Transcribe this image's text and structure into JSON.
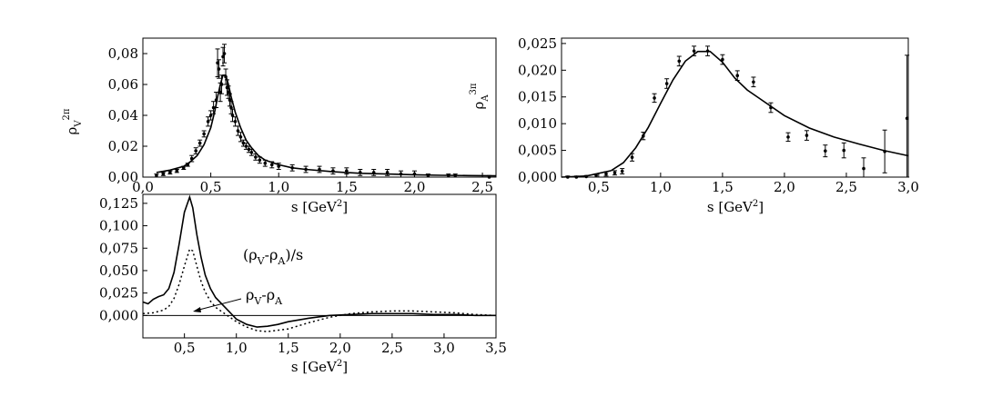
{
  "chart_data": [
    {
      "id": "p1",
      "type": "scatter",
      "xlabel": "s [GeV",
      "xlabel_sup": "2",
      "xlabel_tail": "]",
      "ylabel": "ρ",
      "ylabel_sub": "V",
      "ylabel_sup": "2π",
      "xlim": [
        0.0,
        2.6
      ],
      "ylim": [
        0.0,
        0.09
      ],
      "xticks": [
        0.0,
        0.5,
        1.0,
        1.5,
        2.0,
        2.5
      ],
      "xtick_labels": [
        "0,0",
        "0,5",
        "1,0",
        "1,5",
        "2,0",
        "2,5"
      ],
      "yticks": [
        0.0,
        0.02,
        0.04,
        0.06,
        0.08
      ],
      "ytick_labels": [
        "0,00",
        "0,02",
        "0,04",
        "0,06",
        "0,08"
      ],
      "grid": false,
      "series": [
        {
          "kind": "points",
          "x": [
            0.1,
            0.15,
            0.2,
            0.25,
            0.3,
            0.33,
            0.36,
            0.39,
            0.42,
            0.45,
            0.48,
            0.5,
            0.52,
            0.54,
            0.55,
            0.56,
            0.57,
            0.58,
            0.59,
            0.6,
            0.61,
            0.62,
            0.63,
            0.64,
            0.65,
            0.66,
            0.68,
            0.7,
            0.72,
            0.74,
            0.76,
            0.78,
            0.8,
            0.83,
            0.86,
            0.9,
            0.95,
            1.0,
            1.1,
            1.2,
            1.3,
            1.4,
            1.5,
            1.6,
            1.7,
            1.8,
            1.9,
            2.0,
            2.1,
            2.25,
            2.3,
            2.55
          ],
          "y": [
            0.001,
            0.002,
            0.003,
            0.004,
            0.006,
            0.008,
            0.012,
            0.017,
            0.022,
            0.028,
            0.036,
            0.04,
            0.045,
            0.05,
            0.074,
            0.07,
            0.055,
            0.06,
            0.078,
            0.08,
            0.065,
            0.058,
            0.055,
            0.05,
            0.045,
            0.04,
            0.036,
            0.03,
            0.026,
            0.022,
            0.02,
            0.018,
            0.016,
            0.013,
            0.011,
            0.009,
            0.008,
            0.007,
            0.006,
            0.005,
            0.005,
            0.004,
            0.004,
            0.003,
            0.003,
            0.003,
            0.002,
            0.002,
            0.001,
            0.001,
            0.001,
            0.0
          ],
          "err": [
            0.001,
            0.001,
            0.001,
            0.001,
            0.001,
            0.001,
            0.002,
            0.002,
            0.002,
            0.002,
            0.003,
            0.003,
            0.004,
            0.005,
            0.009,
            0.006,
            0.006,
            0.006,
            0.006,
            0.006,
            0.005,
            0.005,
            0.004,
            0.004,
            0.004,
            0.004,
            0.003,
            0.003,
            0.003,
            0.002,
            0.002,
            0.002,
            0.002,
            0.002,
            0.002,
            0.002,
            0.002,
            0.002,
            0.002,
            0.002,
            0.002,
            0.002,
            0.002,
            0.002,
            0.002,
            0.002,
            0.002,
            0.002,
            0.001,
            0.001,
            0.001,
            0.001
          ]
        },
        {
          "kind": "line",
          "x": [
            0.1,
            0.2,
            0.3,
            0.35,
            0.4,
            0.45,
            0.5,
            0.53,
            0.55,
            0.57,
            0.59,
            0.61,
            0.63,
            0.65,
            0.68,
            0.72,
            0.76,
            0.8,
            0.85,
            0.9,
            1.0,
            1.1,
            1.2,
            1.4,
            1.6,
            1.8,
            2.0,
            2.2,
            2.4,
            2.6
          ],
          "y": [
            0.003,
            0.0045,
            0.007,
            0.01,
            0.014,
            0.021,
            0.032,
            0.043,
            0.052,
            0.06,
            0.066,
            0.066,
            0.06,
            0.052,
            0.042,
            0.032,
            0.024,
            0.019,
            0.014,
            0.011,
            0.008,
            0.006,
            0.005,
            0.0035,
            0.0025,
            0.002,
            0.0015,
            0.0012,
            0.001,
            0.0008
          ]
        }
      ]
    },
    {
      "id": "p2",
      "type": "scatter",
      "xlabel": "s [GeV",
      "xlabel_sup": "2",
      "xlabel_tail": "]",
      "ylabel": "ρ",
      "ylabel_sub": "A",
      "ylabel_sup": "3π",
      "xlim": [
        0.2,
        3.0
      ],
      "ylim": [
        0.0,
        0.026
      ],
      "xticks": [
        0.5,
        1.0,
        1.5,
        2.0,
        2.5,
        3.0
      ],
      "xtick_labels": [
        "0,5",
        "1,0",
        "1,5",
        "2,0",
        "2,5",
        "3,0"
      ],
      "yticks": [
        0.0,
        0.005,
        0.01,
        0.015,
        0.02,
        0.025
      ],
      "ytick_labels": [
        "0,000",
        "0,005",
        "0,010",
        "0,015",
        "0,020",
        "0,025"
      ],
      "grid": false,
      "series": [
        {
          "kind": "points",
          "x": [
            0.25,
            0.32,
            0.4,
            0.48,
            0.56,
            0.63,
            0.69,
            0.77,
            0.86,
            0.95,
            1.05,
            1.15,
            1.27,
            1.38,
            1.5,
            1.62,
            1.75,
            1.89,
            2.03,
            2.18,
            2.33,
            2.48,
            2.64,
            2.81,
            2.99
          ],
          "y": [
            0.0,
            0.0,
            0.0001,
            0.0003,
            0.0006,
            0.0008,
            0.0011,
            0.0037,
            0.0077,
            0.0148,
            0.0175,
            0.0217,
            0.0236,
            0.0236,
            0.022,
            0.019,
            0.0178,
            0.013,
            0.0075,
            0.0078,
            0.0049,
            0.005,
            0.0016,
            0.0048,
            0.011
          ],
          "err": [
            0.0002,
            0.0002,
            0.0002,
            0.0003,
            0.0004,
            0.0004,
            0.0005,
            0.0007,
            0.0007,
            0.0008,
            0.0009,
            0.0009,
            0.0009,
            0.0009,
            0.0009,
            0.0009,
            0.0009,
            0.0009,
            0.0008,
            0.0009,
            0.0011,
            0.0014,
            0.002,
            0.004,
            0.0118
          ]
        },
        {
          "kind": "line",
          "x": [
            0.2,
            0.4,
            0.6,
            0.7,
            0.8,
            0.9,
            1.0,
            1.1,
            1.2,
            1.3,
            1.4,
            1.5,
            1.6,
            1.7,
            1.8,
            2.0,
            2.2,
            2.4,
            2.6,
            2.8,
            3.0
          ],
          "y": [
            0.0,
            0.0002,
            0.0012,
            0.0027,
            0.0055,
            0.0093,
            0.0138,
            0.0182,
            0.0217,
            0.0235,
            0.0235,
            0.0215,
            0.0185,
            0.0163,
            0.0147,
            0.0115,
            0.0092,
            0.0075,
            0.0062,
            0.005,
            0.004
          ]
        }
      ]
    },
    {
      "id": "p3",
      "type": "line",
      "xlabel": "s [GeV",
      "xlabel_sup": "2",
      "xlabel_tail": "]",
      "xlim": [
        0.1,
        3.5
      ],
      "ylim": [
        -0.025,
        0.135
      ],
      "xticks": [
        0.5,
        1.0,
        1.5,
        2.0,
        2.5,
        3.0,
        3.5
      ],
      "xtick_labels": [
        "0,5",
        "1,0",
        "1,5",
        "2,0",
        "2,5",
        "3,0",
        "3,5"
      ],
      "yticks": [
        0.0,
        0.025,
        0.05,
        0.075,
        0.1,
        0.125
      ],
      "ytick_labels": [
        "0,000",
        "0,025",
        "0,050",
        "0,075",
        "0,100",
        "0,125"
      ],
      "grid": false,
      "zero_line": true,
      "annotations": [
        {
          "pre": "(ρ",
          "sub": "V",
          "mid": "-ρ",
          "sub2": "A",
          "post": ")/s"
        },
        {
          "pre": "ρ",
          "sub": "V",
          "mid": "-ρ",
          "sub2": "A",
          "post": ""
        }
      ],
      "series": [
        {
          "label": "(ρV-ρA)/s",
          "style": "solid",
          "x": [
            0.1,
            0.15,
            0.2,
            0.25,
            0.3,
            0.35,
            0.4,
            0.45,
            0.5,
            0.55,
            0.58,
            0.62,
            0.66,
            0.7,
            0.75,
            0.8,
            0.9,
            1.0,
            1.1,
            1.2,
            1.3,
            1.4,
            1.5,
            1.7,
            1.9,
            2.1,
            2.3,
            2.5,
            2.7,
            2.9,
            3.1,
            3.3,
            3.5
          ],
          "y": [
            0.015,
            0.013,
            0.018,
            0.021,
            0.023,
            0.03,
            0.048,
            0.08,
            0.115,
            0.132,
            0.12,
            0.09,
            0.065,
            0.045,
            0.03,
            0.02,
            0.008,
            -0.004,
            -0.01,
            -0.013,
            -0.012,
            -0.01,
            -0.007,
            -0.003,
            0.0,
            0.001,
            0.002,
            0.002,
            0.002,
            0.001,
            0.001,
            0.0,
            0.0
          ]
        },
        {
          "label": "ρV-ρA",
          "style": "dotted",
          "x": [
            0.1,
            0.2,
            0.3,
            0.35,
            0.4,
            0.45,
            0.5,
            0.55,
            0.58,
            0.62,
            0.66,
            0.7,
            0.75,
            0.8,
            0.9,
            1.0,
            1.1,
            1.2,
            1.3,
            1.5,
            1.7,
            1.9,
            2.1,
            2.3,
            2.5,
            2.7,
            2.9,
            3.1,
            3.3,
            3.5
          ],
          "y": [
            0.002,
            0.003,
            0.006,
            0.01,
            0.019,
            0.035,
            0.055,
            0.074,
            0.072,
            0.055,
            0.038,
            0.026,
            0.016,
            0.009,
            0.001,
            -0.007,
            -0.013,
            -0.017,
            -0.018,
            -0.015,
            -0.008,
            -0.002,
            0.002,
            0.004,
            0.005,
            0.005,
            0.004,
            0.003,
            0.001,
            0.0
          ]
        }
      ]
    }
  ]
}
